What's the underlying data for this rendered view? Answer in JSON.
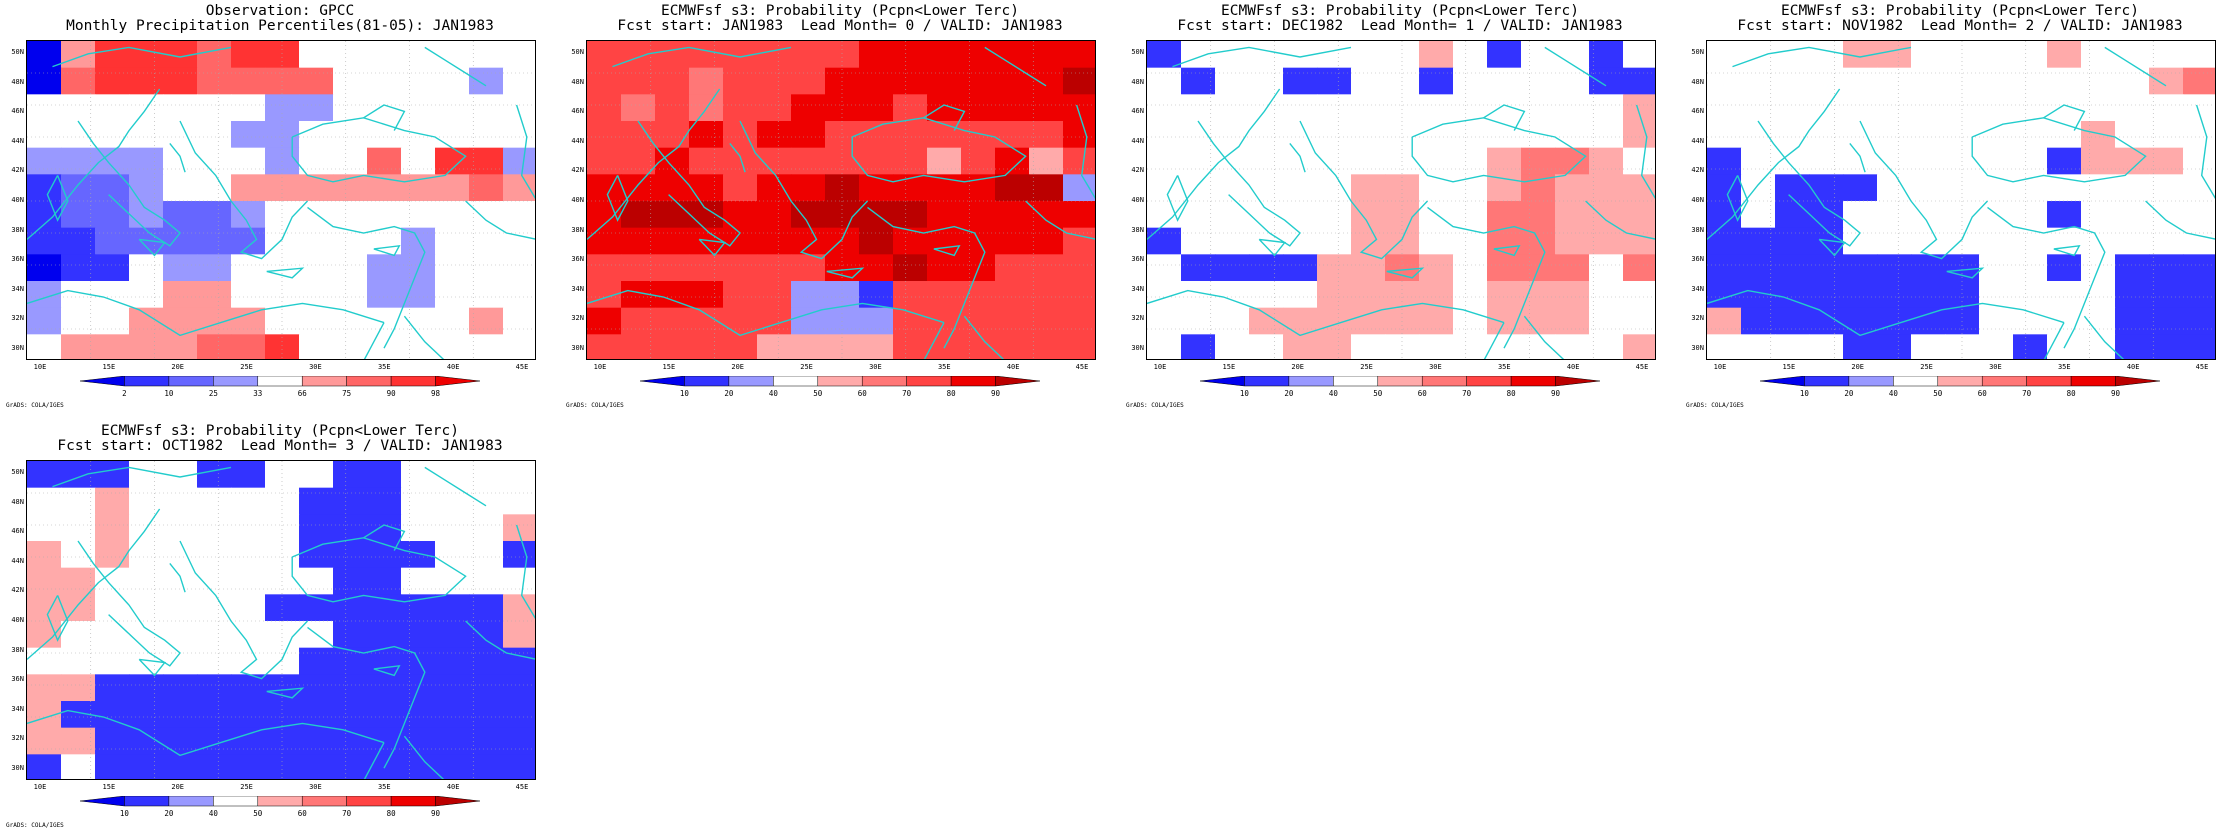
{
  "panels": [
    {
      "id": "obs",
      "title1": "Observation: GPCC",
      "title2": "Monthly Precipitation Percentiles(81-05): JAN1983",
      "colorbar_ticks": [
        "2",
        "10",
        "25",
        "33",
        "66",
        "75",
        "90",
        "98"
      ],
      "colorbar_colors": [
        "#0000ee",
        "#3333ff",
        "#6666ff",
        "#9999ff",
        "#ffffff",
        "#ff9999",
        "#ff6666",
        "#ff3333",
        "#ee0000"
      ],
      "credit": "GrADS: COLA/IGES",
      "grid": [
        "0 5 7 7 7 6 7 7 4 4 4 4 4 4 4",
        "0 6 7 7 7 6 6 6 6 4 4 4 4 3 4",
        "4 4 4 4 4 4 4 3 3 4 4 4 4 4 4",
        "4 4 4 4 4 4 3 3 4 4 4 4 4 4 4",
        "3 3 3 3 4 4 4 3 4 4 6 4 7 7 3",
        "1 2 2 3 4 4 5 5 5 5 5 5 5 6 5",
        "1 2 2 3 2 2 3 4 4 4 4 4 4 4 4",
        "1 1 2 2 2 2 2 4 4 4 4 3 4 4 4",
        "0 1 1 4 3 3 4 4 4 4 3 3 4 4 4",
        "3 4 4 4 5 5 4 4 4 4 3 3 4 4 4",
        "3 4 4 5 5 5 5 4 4 4 4 4 4 5 4",
        "4 5 5 5 5 6 6 7 4 4 4 4 4 4 4"
      ]
    },
    {
      "id": "lead0",
      "title1": "ECMWFsf s3: Probability (Pcpn<Lower Terc)",
      "title2": "Fcst start: JAN1983  Lead Month= 0 / VALID: JAN1983",
      "colorbar_ticks": [
        "10",
        "20",
        "40",
        "50",
        "60",
        "70",
        "80",
        "90"
      ],
      "colorbar_colors": [
        "#0000ee",
        "#3333ff",
        "#9999ff",
        "#ffffff",
        "#ffaaaa",
        "#ff7777",
        "#ff4444",
        "#ee0000",
        "#bb0000"
      ],
      "credit": "GrADS: COLA/IGES",
      "grid": [
        "6 6 6 6 6 6 6 6 7 7 7 7 7 7 7",
        "6 6 6 5 6 6 6 7 7 7 7 7 7 7 8",
        "6 5 6 5 6 6 7 7 7 6 7 7 7 7 7",
        "6 6 6 7 6 7 7 6 6 6 6 6 6 6 7",
        "6 6 7 6 6 6 6 6 6 6 4 6 7 4 6",
        "7 7 7 7 6 7 7 8 7 7 7 7 8 8 2",
        "7 8 8 8 7 7 8 8 8 8 7 7 7 7 7",
        "7 7 7 7 7 7 7 7 8 7 7 7 7 7 6",
        "6 6 6 6 6 6 6 7 7 8 7 7 6 6 6",
        "6 7 7 7 6 6 2 2 1 6 6 6 6 6 6",
        "7 6 6 6 6 6 2 2 2 6 6 6 6 6 6",
        "6 6 6 6 6 4 4 4 4 6 6 6 6 6 6"
      ]
    },
    {
      "id": "lead1",
      "title1": "ECMWFsf s3: Probability (Pcpn<Lower Terc)",
      "title2": "Fcst start: DEC1982  Lead Month= 1 / VALID: JAN1983",
      "colorbar_ticks": [
        "10",
        "20",
        "40",
        "50",
        "60",
        "70",
        "80",
        "90"
      ],
      "colorbar_colors": [
        "#0000ee",
        "#3333ff",
        "#9999ff",
        "#ffffff",
        "#ffaaaa",
        "#ff7777",
        "#ff4444",
        "#ee0000",
        "#bb0000"
      ],
      "credit": "GrADS: COLA/IGES",
      "grid": [
        "1 3 3 3 3 3 3 3 4 3 1 3 3 1 3",
        "3 1 3 3 1 1 3 3 1 3 3 3 3 1 1",
        "3 3 3 3 3 3 3 3 3 3 3 3 3 3 4",
        "3 3 3 3 3 3 3 3 3 3 3 3 3 3 4",
        "3 3 3 3 3 3 3 3 3 3 4 5 5 4 3",
        "3 3 3 3 3 3 4 4 3 3 4 5 4 4 4",
        "3 3 3 3 3 3 4 4 3 3 5 5 4 4 4",
        "1 3 3 3 3 3 4 4 3 3 5 5 4 4 4",
        "3 1 1 1 1 4 4 5 4 3 5 5 5 3 5",
        "3 3 3 3 3 4 4 4 4 3 4 4 4 3 3",
        "3 3 3 4 4 4 4 4 4 3 4 4 4 3 3",
        "3 1 3 3 4 4 3 3 3 3 3 3 3 3 4"
      ]
    },
    {
      "id": "lead2",
      "title1": "ECMWFsf s3: Probability (Pcpn<Lower Terc)",
      "title2": "Fcst start: NOV1982  Lead Month= 2 / VALID: JAN1983",
      "colorbar_ticks": [
        "10",
        "20",
        "40",
        "50",
        "60",
        "70",
        "80",
        "90"
      ],
      "colorbar_colors": [
        "#0000ee",
        "#3333ff",
        "#9999ff",
        "#ffffff",
        "#ffaaaa",
        "#ff7777",
        "#ff4444",
        "#ee0000",
        "#bb0000"
      ],
      "credit": "GrADS: COLA/IGES",
      "grid": [
        "3 3 3 3 4 4 3 3 3 3 4 3 3 3 3",
        "3 3 3 3 3 3 3 3 3 3 3 3 3 4 5",
        "3 3 3 3 3 3 3 3 3 3 3 3 3 3 3",
        "3 3 3 3 3 3 3 3 3 3 3 4 3 3 3",
        "1 3 3 3 3 3 3 3 3 3 1 4 4 4 3",
        "1 3 1 1 1 3 3 3 3 3 3 3 3 3 3",
        "1 3 1 1 3 3 3 3 3 3 1 3 3 3 3",
        "1 1 1 1 3 3 3 3 3 3 3 3 3 3 3",
        "1 1 1 1 1 1 1 1 3 3 1 3 1 1 1",
        "1 1 1 1 1 1 1 1 3 3 3 3 1 1 1",
        "4 1 1 1 1 1 1 1 3 3 3 3 1 1 1",
        "3 3 3 3 1 1 3 3 3 1 3 3 1 1 1"
      ]
    },
    {
      "id": "lead3",
      "title1": "ECMWFsf s3: Probability (Pcpn<Lower Terc)",
      "title2": "Fcst start: OCT1982  Lead Month= 3 / VALID: JAN1983",
      "colorbar_ticks": [
        "10",
        "20",
        "40",
        "50",
        "60",
        "70",
        "80",
        "90"
      ],
      "colorbar_colors": [
        "#0000ee",
        "#3333ff",
        "#9999ff",
        "#ffffff",
        "#ffaaaa",
        "#ff7777",
        "#ff4444",
        "#ee0000",
        "#bb0000"
      ],
      "credit": "GrADS: COLA/IGES",
      "grid": [
        "1 1 1 3 3 1 1 3 3 1 1 3 3 3 3",
        "3 3 4 3 3 3 3 3 1 1 1 3 3 3 3",
        "3 3 4 3 3 3 3 3 1 1 1 3 3 3 4",
        "4 3 4 3 3 3 3 3 1 1 1 1 3 3 1",
        "4 4 3 3 3 3 3 3 3 1 1 3 3 3 3",
        "4 4 3 3 3 3 3 1 1 1 1 1 1 1 4",
        "4 3 3 3 3 3 3 3 3 1 1 1 1 1 4",
        "3 3 3 3 3 3 3 3 1 1 1 1 1 1 1",
        "4 4 1 1 1 1 1 1 1 1 1 1 1 1 1",
        "4 1 1 1 1 1 1 1 1 1 1 1 1 1 1",
        "4 4 1 1 1 1 1 1 1 1 1 1 1 1 1",
        "1 3 1 1 1 1 1 1 1 1 1 1 1 1 1"
      ]
    }
  ],
  "map": {
    "lat_labels": [
      "50N",
      "48N",
      "46N",
      "44N",
      "42N",
      "40N",
      "38N",
      "36N",
      "34N",
      "32N",
      "30N"
    ],
    "lon_labels": [
      "10E",
      "15E",
      "20E",
      "25E",
      "30E",
      "35E",
      "40E",
      "45E"
    ],
    "coast_color": "#22cccc"
  }
}
